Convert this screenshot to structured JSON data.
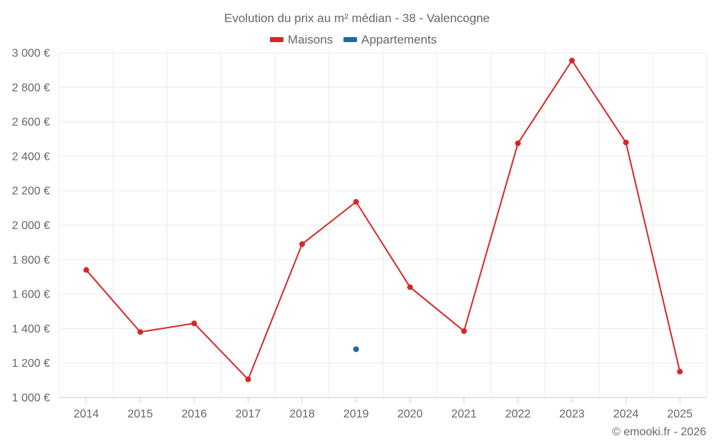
{
  "chart_data": {
    "type": "line",
    "title": "Evolution du prix au m² médian - 38 - Valencogne",
    "categories": [
      "2014",
      "2015",
      "2016",
      "2017",
      "2018",
      "2019",
      "2020",
      "2021",
      "2022",
      "2023",
      "2024",
      "2025"
    ],
    "series": [
      {
        "name": "Maisons",
        "color": "#d62728",
        "values": [
          1740,
          1380,
          1430,
          1105,
          1890,
          2135,
          1640,
          1385,
          2475,
          2955,
          2480,
          1150
        ]
      },
      {
        "name": "Appartements",
        "color": "#1f6aa5",
        "values": [
          null,
          null,
          null,
          null,
          null,
          1280,
          null,
          null,
          null,
          null,
          null,
          null
        ]
      }
    ],
    "ylim": [
      1000,
      3000
    ],
    "yticks": [
      1000,
      1200,
      1400,
      1600,
      1800,
      2000,
      2200,
      2400,
      2600,
      2800,
      3000
    ],
    "ytick_labels": [
      "1 000 €",
      "1 200 €",
      "1 400 €",
      "1 600 €",
      "1 800 €",
      "2 000 €",
      "2 200 €",
      "2 400 €",
      "2 600 €",
      "2 800 €",
      "3 000 €"
    ],
    "xlabel": "",
    "ylabel": "",
    "legend_position": "top-center",
    "grid": true
  },
  "credit": "© emooki.fr - 2026"
}
